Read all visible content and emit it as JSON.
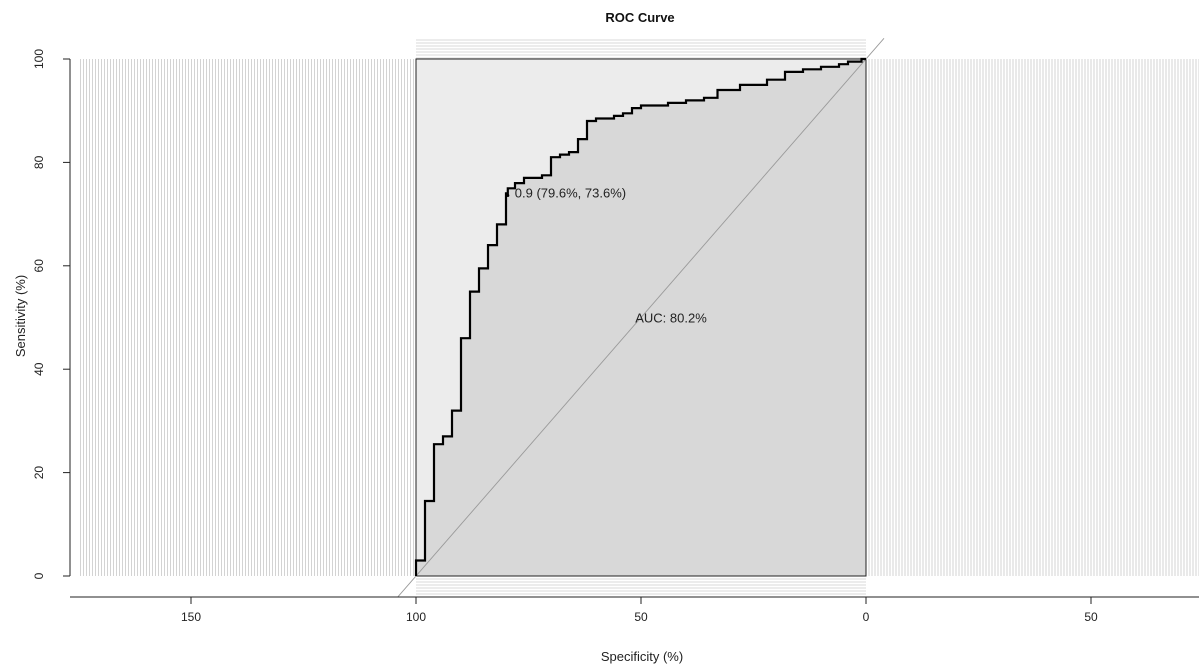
{
  "chart_data": {
    "type": "line",
    "title": "ROC Curve",
    "xlabel": "Specificity (%)",
    "ylabel": "Sensitivity (%)",
    "x_reversed": true,
    "xlim": [
      175,
      -75
    ],
    "ylim": [
      0,
      100
    ],
    "x_ticks": [
      {
        "value": 150,
        "label": "150"
      },
      {
        "value": 100,
        "label": "100"
      },
      {
        "value": 50,
        "label": "50"
      },
      {
        "value": 0,
        "label": "0"
      },
      {
        "value": -50,
        "label": "50"
      }
    ],
    "y_ticks": [
      {
        "value": 0,
        "label": "0"
      },
      {
        "value": 20,
        "label": "20"
      },
      {
        "value": 40,
        "label": "40"
      },
      {
        "value": 60,
        "label": "60"
      },
      {
        "value": 80,
        "label": "80"
      },
      {
        "value": 100,
        "label": "100"
      }
    ],
    "series": [
      {
        "color": "#000000",
        "points": [
          [
            100,
            0
          ],
          [
            100,
            3
          ],
          [
            98,
            3
          ],
          [
            98,
            14.5
          ],
          [
            96,
            14.5
          ],
          [
            96,
            25.5
          ],
          [
            94,
            25.5
          ],
          [
            94,
            27
          ],
          [
            92,
            27
          ],
          [
            92,
            32
          ],
          [
            90,
            32
          ],
          [
            90,
            46
          ],
          [
            88,
            46
          ],
          [
            88,
            55
          ],
          [
            86,
            55
          ],
          [
            86,
            59.5
          ],
          [
            84,
            59.5
          ],
          [
            84,
            64
          ],
          [
            82,
            64
          ],
          [
            82,
            68
          ],
          [
            80,
            68
          ],
          [
            80,
            74
          ],
          [
            79.6,
            74
          ],
          [
            79.6,
            75
          ],
          [
            78,
            75
          ],
          [
            78,
            76
          ],
          [
            76,
            76
          ],
          [
            76,
            77
          ],
          [
            72,
            77
          ],
          [
            72,
            77.5
          ],
          [
            70,
            77.5
          ],
          [
            70,
            81
          ],
          [
            68,
            81
          ],
          [
            68,
            81.5
          ],
          [
            66,
            81.5
          ],
          [
            66,
            82
          ],
          [
            64,
            82
          ],
          [
            64,
            84.5
          ],
          [
            62,
            84.5
          ],
          [
            62,
            88
          ],
          [
            60,
            88
          ],
          [
            60,
            88.5
          ],
          [
            56,
            88.5
          ],
          [
            56,
            89
          ],
          [
            54,
            89
          ],
          [
            54,
            89.5
          ],
          [
            52,
            89.5
          ],
          [
            52,
            90.5
          ],
          [
            50,
            90.5
          ],
          [
            50,
            91
          ],
          [
            44,
            91
          ],
          [
            44,
            91.5
          ],
          [
            40,
            91.5
          ],
          [
            40,
            92
          ],
          [
            36,
            92
          ],
          [
            36,
            92.5
          ],
          [
            33,
            92.5
          ],
          [
            33,
            94
          ],
          [
            28,
            94
          ],
          [
            28,
            95
          ],
          [
            22,
            95
          ],
          [
            22,
            96
          ],
          [
            18,
            96
          ],
          [
            18,
            97.5
          ],
          [
            14,
            97.5
          ],
          [
            14,
            98
          ],
          [
            10,
            98
          ],
          [
            10,
            98.5
          ],
          [
            6,
            98.5
          ],
          [
            6,
            99
          ],
          [
            4,
            99
          ],
          [
            4,
            99.5
          ],
          [
            1,
            99.5
          ],
          [
            1,
            100
          ],
          [
            0,
            100
          ]
        ]
      }
    ],
    "diagonal": [
      [
        100,
        0
      ],
      [
        0,
        100
      ]
    ],
    "auc_polygon_fill": "#d8d8d8",
    "partial_region_fill": "#ececec",
    "annotations": [
      {
        "text": "0.9 (79.6%, 73.6%)",
        "x": 79.6,
        "y": 73.6
      },
      {
        "text": "AUC: 80.2%",
        "x": 50,
        "y": 49
      }
    ],
    "threshold_point": {
      "x": 79.6,
      "y": 73.6
    },
    "grid": false
  }
}
